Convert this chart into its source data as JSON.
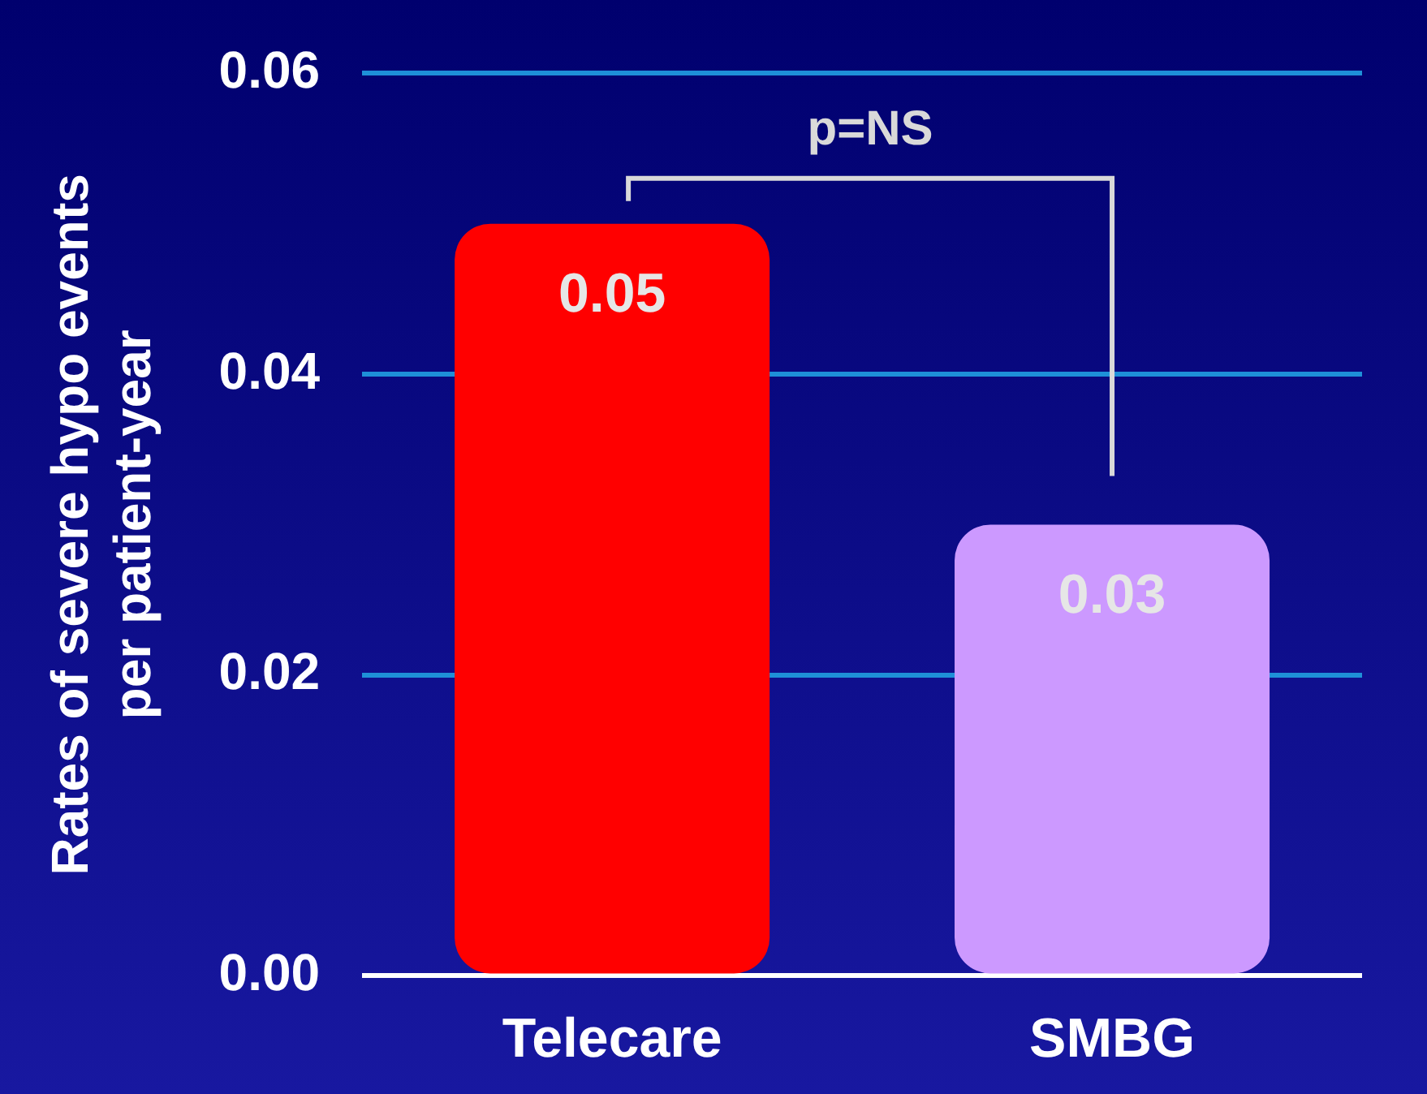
{
  "chart_data": {
    "type": "bar",
    "ylabel": "Rates of severe hypo events\nper patient-year",
    "categories": [
      "Telecare",
      "SMBG"
    ],
    "values": [
      0.05,
      0.03
    ],
    "colors": [
      "#ff0000",
      "#cc99ff"
    ],
    "ylim": [
      0,
      0.06
    ],
    "yticks": [
      {
        "value": 0,
        "label": "0.00"
      },
      {
        "value": 0.02,
        "label": "0.02"
      },
      {
        "value": 0.04,
        "label": "0.04"
      },
      {
        "value": 0.06,
        "label": "0.06"
      }
    ],
    "grid": "y",
    "legend": false,
    "data_labels": true,
    "annotations": [
      "p=NS"
    ]
  }
}
